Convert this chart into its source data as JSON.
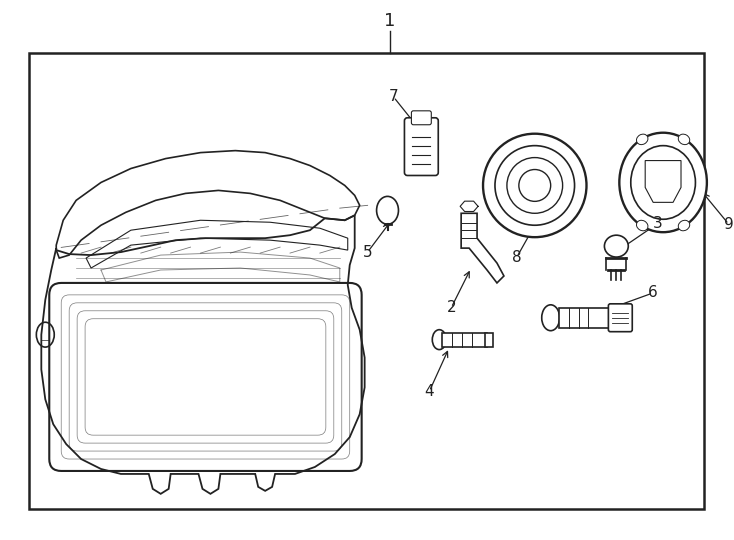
{
  "bg_color": "#ffffff",
  "border_color": "#222222",
  "line_color": "#222222",
  "fig_width": 7.34,
  "fig_height": 5.4,
  "dpi": 100
}
